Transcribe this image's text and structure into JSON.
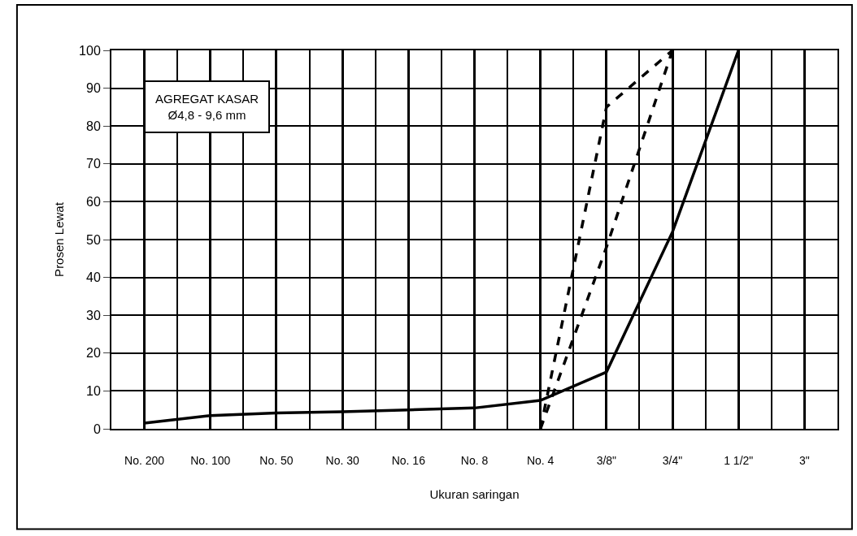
{
  "chart_data": {
    "type": "line",
    "xlabel": "Ukuran saringan",
    "ylabel": "Prosen Lewat",
    "categories": [
      "No. 200",
      "No. 100",
      "No. 50",
      "No. 30",
      "No. 16",
      "No. 8",
      "No. 4",
      "3/8\"",
      "3/4\"",
      "1 1/2\"",
      "3\""
    ],
    "series": [
      {
        "color": "#000000",
        "line_style": "solid",
        "values": [
          1.5,
          3.5,
          4.2,
          4.5,
          5,
          5.5,
          7.5,
          15,
          52,
          100,
          null
        ]
      },
      {
        "color": "#000000",
        "line_style": "dashed",
        "values": [
          null,
          null,
          null,
          null,
          null,
          null,
          0,
          85,
          100,
          null,
          null
        ]
      },
      {
        "color": "#000000",
        "line_style": "dashed",
        "values": [
          null,
          null,
          null,
          null,
          null,
          null,
          0,
          48,
          100,
          null,
          null
        ]
      }
    ],
    "ylim": [
      0,
      100
    ],
    "yticks": [
      0,
      10,
      20,
      30,
      40,
      50,
      60,
      70,
      80,
      90,
      100
    ],
    "grid": true,
    "marker": "none",
    "annotations": [
      "AGREGAT KASAR\nØ4,8 - 9,6 mm"
    ]
  }
}
